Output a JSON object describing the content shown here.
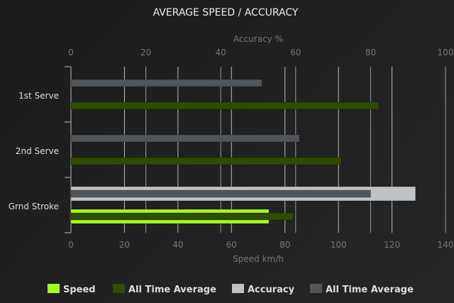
{
  "chart_data": {
    "type": "bar",
    "orientation": "horizontal",
    "title": "AVERAGE SPEED / ACCURACY",
    "categories": [
      "1st Serve",
      "2nd Serve",
      "Grnd Stroke"
    ],
    "x_top": {
      "label": "Accuracy %",
      "range": [
        0,
        100
      ],
      "ticks": [
        0,
        20,
        40,
        60,
        80,
        100
      ]
    },
    "x_bottom": {
      "label": "Speed km/h",
      "range": [
        0,
        140
      ],
      "ticks": [
        0,
        20,
        40,
        60,
        80,
        100,
        120,
        140
      ]
    },
    "grid": true,
    "legend_position": "bottom",
    "series": [
      {
        "name": "Speed",
        "axis": "speed",
        "color": "#a6ff1f",
        "values": [
          0,
          0,
          74
        ]
      },
      {
        "name": "All Time Average",
        "axis": "speed",
        "color": "#2f4c00",
        "values": [
          115,
          101,
          83
        ]
      },
      {
        "name": "Accuracy",
        "axis": "accuracy",
        "color": "#bfc3c5",
        "values": [
          0,
          0,
          92
        ]
      },
      {
        "name": "All Time Average",
        "axis": "accuracy",
        "color": "#51565c",
        "values": [
          51,
          61,
          80
        ]
      }
    ]
  }
}
